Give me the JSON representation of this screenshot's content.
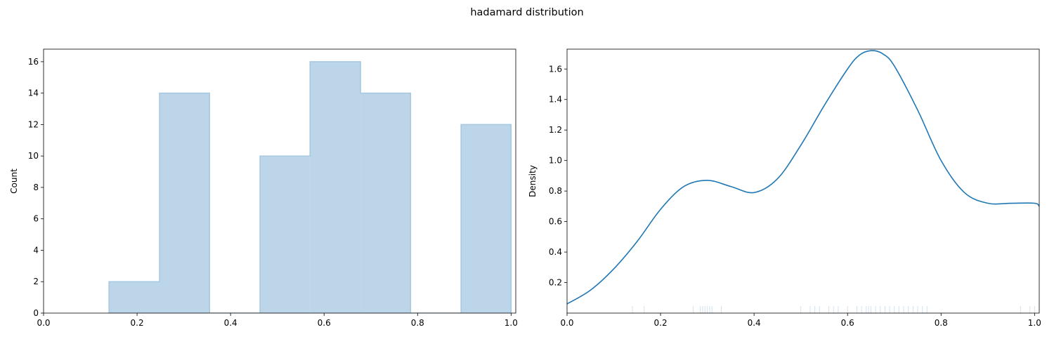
{
  "title": "hadamard distribution",
  "colors": {
    "hist_fill": "#bcd5e8",
    "hist_edge": "#a6c8e0",
    "kde_line": "#1f77b4",
    "rug": "#d2e3f0"
  },
  "chart_data": [
    {
      "type": "histogram",
      "xlabel": "",
      "ylabel": "Count",
      "xlim": [
        0.0,
        1.01
      ],
      "ylim": [
        0,
        16.8
      ],
      "xticks": [
        "0.0",
        "0.2",
        "0.4",
        "0.6",
        "0.8",
        "1.0"
      ],
      "yticks": [
        "0",
        "2",
        "4",
        "6",
        "8",
        "10",
        "12",
        "14",
        "16"
      ],
      "bins": [
        {
          "x0": 0.14,
          "x1": 0.248,
          "count": 2
        },
        {
          "x0": 0.248,
          "x1": 0.355,
          "count": 14
        },
        {
          "x0": 0.355,
          "x1": 0.463,
          "count": 0
        },
        {
          "x0": 0.463,
          "x1": 0.57,
          "count": 10
        },
        {
          "x0": 0.57,
          "x1": 0.678,
          "count": 16
        },
        {
          "x0": 0.678,
          "x1": 0.785,
          "count": 14
        },
        {
          "x0": 0.785,
          "x1": 0.893,
          "count": 0
        },
        {
          "x0": 0.893,
          "x1": 1.0,
          "count": 12
        }
      ]
    },
    {
      "type": "line",
      "xlabel": "",
      "ylabel": "Density",
      "xlim": [
        0.0,
        1.01
      ],
      "ylim": [
        0.0,
        1.73
      ],
      "xticks": [
        "0.0",
        "0.2",
        "0.4",
        "0.6",
        "0.8",
        "1.0"
      ],
      "yticks": [
        "0.2",
        "0.4",
        "0.6",
        "0.8",
        "1.0",
        "1.2",
        "1.4",
        "1.6"
      ],
      "x": [
        0.0,
        0.05,
        0.1,
        0.15,
        0.2,
        0.25,
        0.3,
        0.35,
        0.4,
        0.45,
        0.5,
        0.55,
        0.6,
        0.625,
        0.65,
        0.675,
        0.7,
        0.75,
        0.8,
        0.85,
        0.9,
        0.95,
        1.0,
        1.01
      ],
      "y": [
        0.06,
        0.15,
        0.29,
        0.47,
        0.68,
        0.83,
        0.87,
        0.83,
        0.79,
        0.88,
        1.1,
        1.36,
        1.6,
        1.69,
        1.72,
        1.7,
        1.62,
        1.33,
        1.0,
        0.79,
        0.72,
        0.72,
        0.72,
        0.7
      ],
      "rug": [
        0.14,
        0.165,
        0.27,
        0.285,
        0.29,
        0.295,
        0.3,
        0.305,
        0.31,
        0.33,
        0.5,
        0.52,
        0.53,
        0.54,
        0.56,
        0.57,
        0.58,
        0.6,
        0.62,
        0.63,
        0.64,
        0.645,
        0.65,
        0.66,
        0.67,
        0.68,
        0.69,
        0.7,
        0.71,
        0.72,
        0.73,
        0.74,
        0.75,
        0.76,
        0.77,
        0.97,
        0.99,
        1.0
      ]
    }
  ]
}
